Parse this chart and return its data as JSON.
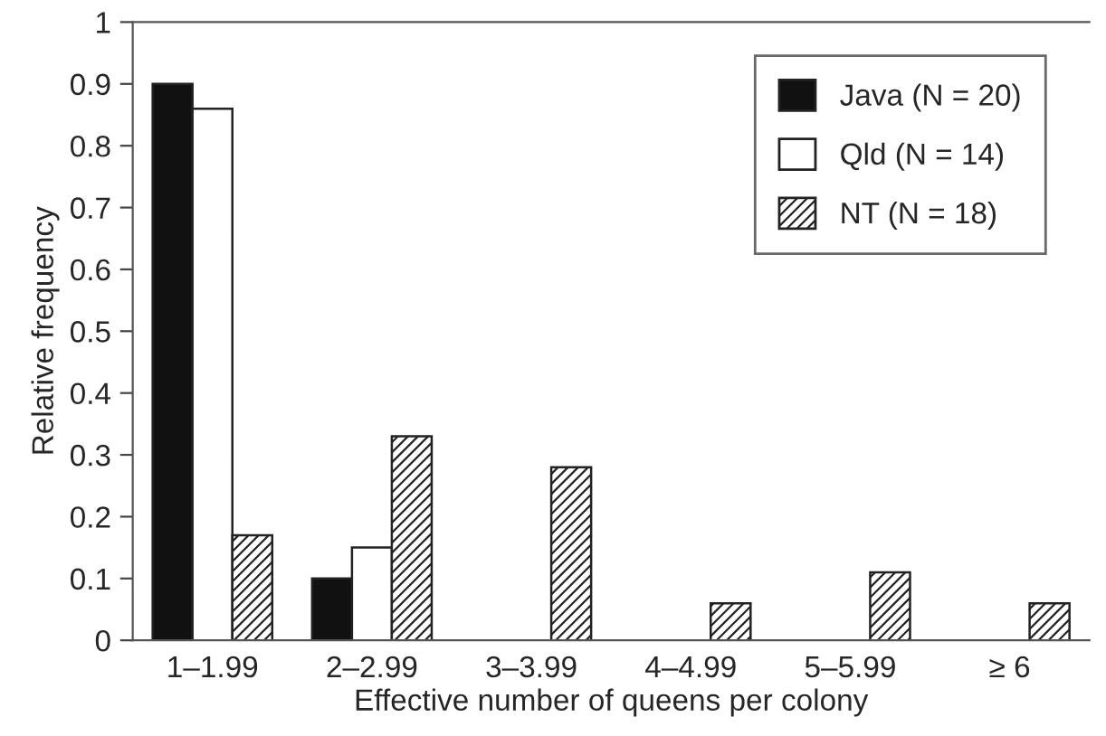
{
  "chart_data": {
    "type": "bar",
    "xlabel": "Effective number of queens per colony",
    "ylabel": "Relative frequency",
    "categories": [
      "1–1.99",
      "2–2.99",
      "3–3.99",
      "4–4.99",
      "5–5.99",
      "≥ 6"
    ],
    "series": [
      {
        "name": "Java (N = 20)",
        "color": "#111111",
        "values": [
          0.9,
          0.1,
          0,
          0,
          0,
          0
        ]
      },
      {
        "name": "Qld (N = 14)",
        "color": "#ffffff",
        "values": [
          0.86,
          0.15,
          0,
          0,
          0,
          0
        ]
      },
      {
        "name": "NT (N = 18)",
        "color": "#222222",
        "values": [
          0.17,
          0.33,
          0.28,
          0.06,
          0.11,
          0.06
        ]
      }
    ],
    "ylim": [
      0,
      1
    ],
    "yticks": [
      0,
      0.1,
      0.2,
      0.3,
      0.4,
      0.5,
      0.6,
      0.7,
      0.8,
      0.9,
      1
    ],
    "grid": false,
    "legend": "top right"
  }
}
